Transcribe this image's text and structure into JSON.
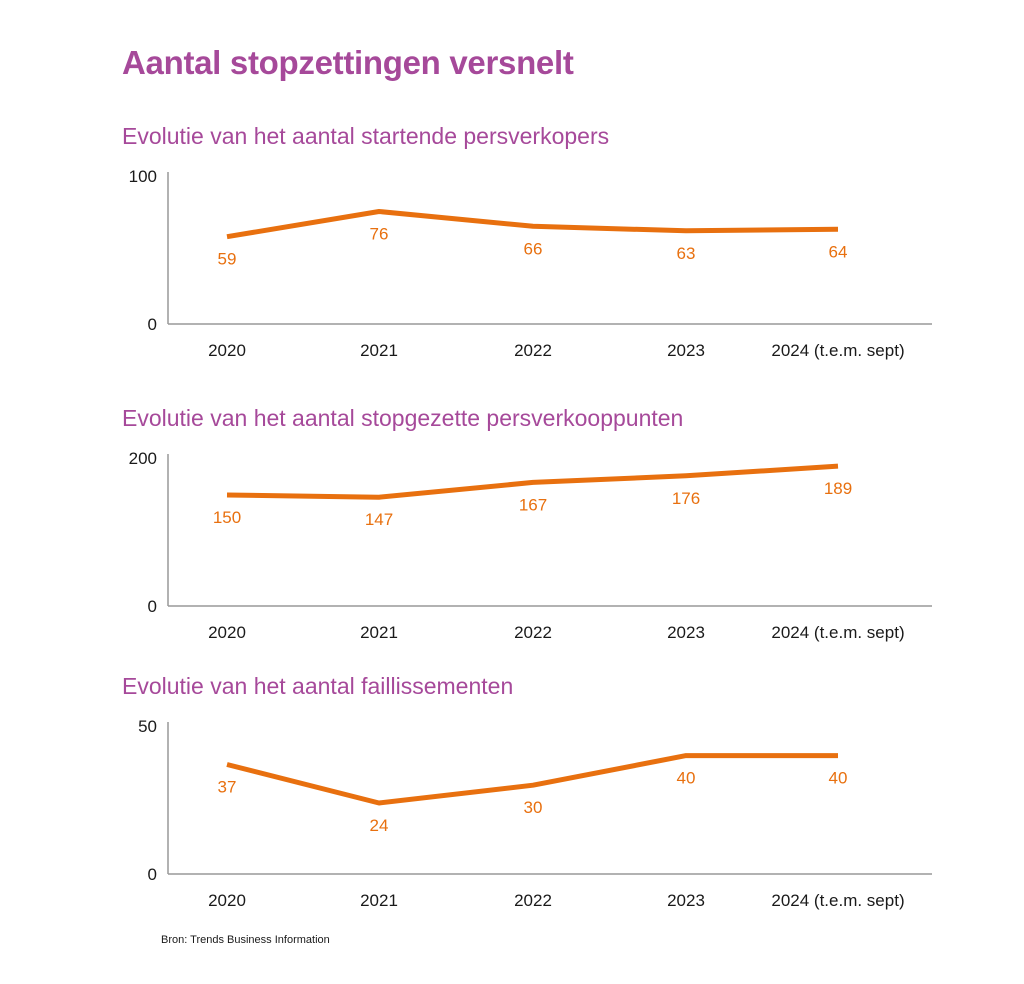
{
  "title": "Aantal stopzettingen versnelt",
  "source": "Bron: Trends Business Information",
  "colors": {
    "title": "#a6499a",
    "line": "#e8700f",
    "axis": "#999999",
    "text": "#1a1a1a"
  },
  "chart_data": [
    {
      "type": "line",
      "title": "Evolutie van het aantal startende persverkopers",
      "categories": [
        "2020",
        "2021",
        "2022",
        "2023",
        "2024 (t.e.m. sept)"
      ],
      "values": [
        59,
        76,
        66,
        63,
        64
      ],
      "ylim": [
        0,
        100
      ],
      "yticks": [
        "0",
        "100"
      ],
      "grid": false,
      "legend": "none"
    },
    {
      "type": "line",
      "title": "Evolutie van het aantal stopgezette persverkooppunten",
      "categories": [
        "2020",
        "2021",
        "2022",
        "2023",
        "2024 (t.e.m. sept)"
      ],
      "values": [
        150,
        147,
        167,
        176,
        189
      ],
      "ylim": [
        0,
        200
      ],
      "yticks": [
        "0",
        "200"
      ],
      "grid": false,
      "legend": "none"
    },
    {
      "type": "line",
      "title": "Evolutie van het aantal faillissementen",
      "categories": [
        "2020",
        "2021",
        "2022",
        "2023",
        "2024 (t.e.m. sept)"
      ],
      "values": [
        37,
        24,
        30,
        40,
        40
      ],
      "ylim": [
        0,
        50
      ],
      "yticks": [
        "0",
        "50"
      ],
      "grid": false,
      "legend": "none"
    }
  ]
}
